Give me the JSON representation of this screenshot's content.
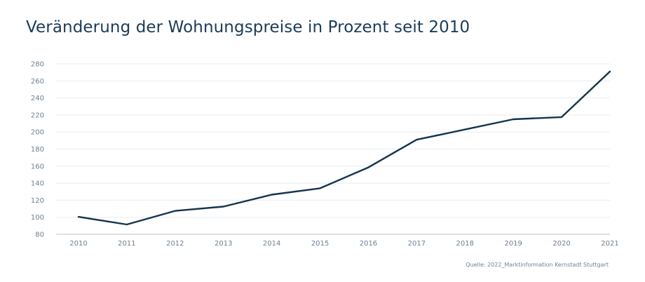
{
  "chart_data": {
    "type": "line",
    "title": "Veränderung der Wohnungspreise in Prozent seit 2010",
    "xlabel": "",
    "ylabel": "",
    "x": [
      "2010",
      "2011",
      "2012",
      "2013",
      "2014",
      "2015",
      "2016",
      "2017",
      "2018",
      "2019",
      "2020",
      "2021"
    ],
    "series": [
      {
        "values": [
          100.5,
          91.5,
          107.5,
          112.5,
          126.5,
          134,
          158.5,
          191,
          203,
          215,
          217.5,
          271
        ]
      }
    ],
    "ylim": [
      80,
      280
    ],
    "yticks": [
      80,
      100,
      120,
      140,
      160,
      180,
      200,
      220,
      240,
      260,
      280
    ],
    "grid": true,
    "legend": "none",
    "line_color": "#14344f",
    "source": "Quelle: 2022_Marktinformation Kernstadt Stuttgart"
  }
}
